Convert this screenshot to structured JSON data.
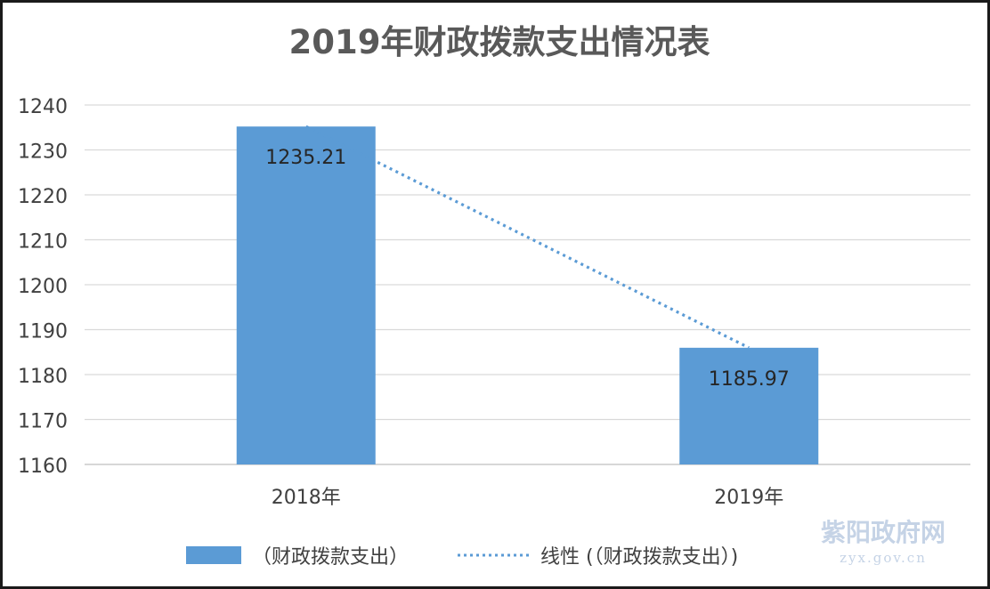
{
  "chart_data": {
    "type": "bar",
    "title": "2019年财政拨款支出情况表",
    "categories": [
      "2018年",
      "2019年"
    ],
    "series": [
      {
        "name": "（财政拨款支出）",
        "values": [
          1235.21,
          1185.97
        ]
      }
    ],
    "data_labels": [
      "1235.21",
      "1185.97"
    ],
    "trendline": {
      "name": "线性 (（财政拨款支出）)",
      "type": "linear",
      "style": "dotted"
    },
    "ylim": [
      1160,
      1240
    ],
    "yticks": [
      1160,
      1170,
      1180,
      1190,
      1200,
      1210,
      1220,
      1230,
      1240
    ],
    "grid": true,
    "legend_position": "bottom",
    "colors": {
      "bar": "#5b9bd5",
      "trendline": "#5b9bd5",
      "grid": "#d9d9d9",
      "frame": "#1a1a1a"
    }
  },
  "watermark": {
    "text": "紫阳政府网",
    "url": "zyx.gov.cn"
  }
}
